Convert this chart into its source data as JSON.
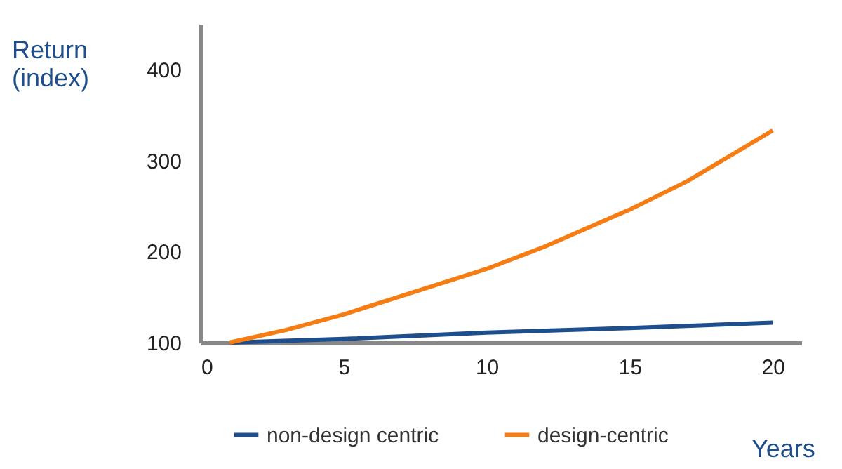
{
  "chart_data": {
    "type": "line",
    "xlabel": "Years",
    "ylabel": "Return (index)",
    "xlim": [
      0,
      21
    ],
    "xticks": [
      0,
      5,
      10,
      15,
      20
    ],
    "ylim": [
      100,
      450
    ],
    "yticks": [
      100,
      200,
      300,
      400
    ],
    "grid": false,
    "legend": "bottom",
    "line_style": "solid",
    "marker": "none",
    "series": [
      {
        "name": "non-design centric",
        "color": "#1f4e8c",
        "x": [
          1,
          5,
          10,
          15,
          20
        ],
        "values": [
          100,
          104,
          111,
          116,
          122
        ]
      },
      {
        "name": "design-centric",
        "color": "#f57d14",
        "x": [
          1,
          3,
          5,
          7,
          10,
          12,
          15,
          17,
          20
        ],
        "values": [
          100,
          114,
          131,
          151,
          181,
          205,
          246,
          277,
          333
        ]
      }
    ]
  }
}
